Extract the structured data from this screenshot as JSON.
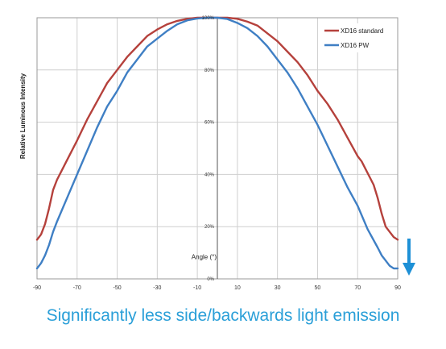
{
  "caption": "Significantly less side/backwards light emission",
  "colors": {
    "standard": "#b5413c",
    "pw": "#3f7fc4",
    "arrow": "#1e90d6",
    "grid": "#cfcfcf"
  },
  "chart_data": {
    "type": "line",
    "ylabel": "Relative Luminous Intensity",
    "xlabel": "Angle (°)",
    "xlim": [
      -90,
      90
    ],
    "ylim": [
      0,
      100
    ],
    "x_ticks": [
      -90,
      -70,
      -50,
      -30,
      -10,
      10,
      30,
      50,
      70,
      90
    ],
    "y_ticks": [
      0,
      20,
      40,
      60,
      80,
      100
    ],
    "y_tick_labels": [
      "0%",
      "20%",
      "40%",
      "60%",
      "80%",
      "100%"
    ],
    "grid": true,
    "legend_position": "top-right",
    "series": [
      {
        "name": "XD16 standard",
        "x": [
          -90,
          -88,
          -86,
          -84,
          -82,
          -80,
          -78,
          -76,
          -74,
          -72,
          -70,
          -65,
          -60,
          -55,
          -50,
          -45,
          -40,
          -35,
          -30,
          -25,
          -20,
          -15,
          -10,
          -5,
          0,
          5,
          10,
          15,
          20,
          25,
          30,
          35,
          40,
          45,
          50,
          55,
          60,
          65,
          70,
          72,
          74,
          76,
          78,
          80,
          82,
          84,
          86,
          88,
          90
        ],
        "y": [
          15,
          17,
          21,
          27,
          34,
          38,
          41,
          44,
          47,
          50,
          53,
          61,
          68,
          75,
          80,
          85,
          89,
          93,
          95.5,
          97.5,
          98.8,
          99.6,
          100,
          100,
          100,
          100,
          99.6,
          98.5,
          97,
          94,
          91,
          87,
          83,
          78,
          72,
          67,
          61,
          54,
          47,
          45,
          42,
          39,
          36,
          31,
          25,
          20,
          18,
          16,
          15
        ]
      },
      {
        "name": "XD16 PW",
        "x": [
          -90,
          -88,
          -86,
          -84,
          -82,
          -80,
          -75,
          -70,
          -65,
          -60,
          -55,
          -50,
          -45,
          -40,
          -35,
          -30,
          -25,
          -20,
          -15,
          -10,
          -5,
          0,
          5,
          10,
          15,
          20,
          25,
          30,
          35,
          40,
          45,
          50,
          55,
          60,
          65,
          70,
          75,
          80,
          82,
          84,
          86,
          88,
          90
        ],
        "y": [
          4,
          6,
          9,
          13,
          18,
          22,
          31,
          40,
          49,
          58,
          66,
          72,
          79,
          84,
          89,
          92,
          95,
          97.5,
          99,
          99.7,
          100,
          100,
          99.5,
          98,
          96,
          93,
          89,
          84,
          79,
          73,
          66,
          59,
          51,
          43,
          35,
          28,
          19,
          12,
          9,
          7,
          5,
          4,
          4
        ]
      }
    ]
  }
}
